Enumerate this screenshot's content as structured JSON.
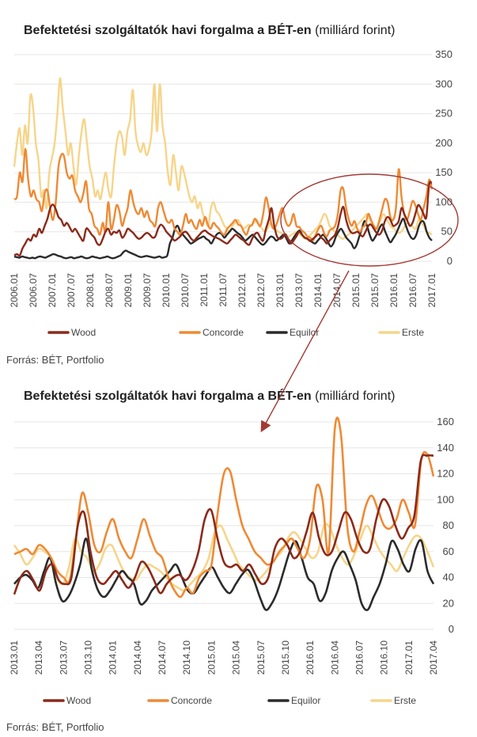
{
  "chart_data": [
    {
      "type": "line",
      "title_main": "Befektetési szolgáltatók havi forgalma a BÉT-en",
      "title_unit": "(milliárd forint)",
      "ylim": [
        0,
        350
      ],
      "yticks": [
        "0",
        "50",
        "100",
        "150",
        "200",
        "250",
        "300",
        "350"
      ],
      "x_tick_labels": [
        "2006.01",
        "2006.07",
        "2007.01",
        "2007.07",
        "2008.01",
        "2008.07",
        "2009.01",
        "2009.07",
        "2010.01",
        "2010.07",
        "2011.01",
        "2011.07",
        "2012.01",
        "2012.07",
        "2013.01",
        "2013.07",
        "2014.01",
        "2014.07",
        "2015.01",
        "2015.07",
        "2016.01",
        "2016.07",
        "2017.01"
      ],
      "x_start": "2006.01",
      "x_end": "2017.04",
      "grid": true,
      "legend_position": "bottom",
      "series": [
        {
          "name": "Wood",
          "color": "#8b2a1a",
          "values": [
            10,
            12,
            10,
            22,
            30,
            38,
            35,
            45,
            42,
            55,
            48,
            60,
            72,
            90,
            96,
            88,
            75,
            70,
            60,
            65,
            58,
            50,
            55,
            48,
            40,
            35,
            55,
            52,
            45,
            40,
            30,
            28,
            38,
            50,
            55,
            45,
            50,
            48,
            52,
            40,
            45,
            55,
            52,
            48,
            42,
            38,
            40,
            45,
            48,
            45,
            40,
            42,
            55,
            62,
            58,
            50,
            45,
            40,
            35,
            38,
            42,
            48,
            50,
            45,
            38,
            35,
            40,
            45,
            50,
            52,
            48,
            45,
            42,
            40,
            38,
            35,
            32,
            30,
            35,
            40,
            45,
            42,
            38,
            35,
            30,
            28,
            38,
            46,
            48,
            40,
            35,
            55,
            70,
            90,
            60,
            42,
            38,
            40,
            46,
            38,
            30,
            35,
            42,
            50,
            45,
            40,
            38,
            34,
            38,
            42,
            46,
            40,
            36,
            30,
            35,
            40,
            45,
            58,
            80,
            92,
            70,
            55,
            48,
            48,
            50,
            46,
            42,
            50,
            60,
            62,
            55,
            48,
            45,
            52,
            68,
            75,
            70,
            60,
            62,
            68,
            90,
            80,
            70,
            60,
            65,
            80,
            95,
            90,
            80,
            75,
            130,
            132
          ]
        },
        {
          "name": "Concorde",
          "color": "#ee8a35",
          "values": [
            105,
            110,
            150,
            135,
            190,
            140,
            110,
            120,
            105,
            100,
            85,
            115,
            120,
            90,
            70,
            100,
            160,
            180,
            178,
            150,
            140,
            145,
            120,
            110,
            100,
            115,
            135,
            90,
            80,
            60,
            55,
            45,
            65,
            50,
            100,
            55,
            70,
            95,
            85,
            60,
            75,
            90,
            120,
            100,
            85,
            80,
            90,
            75,
            85,
            70,
            65,
            60,
            90,
            100,
            85,
            70,
            65,
            70,
            55,
            50,
            45,
            60,
            80,
            65,
            70,
            60,
            55,
            70,
            60,
            75,
            62,
            55,
            65,
            60,
            55,
            48,
            45,
            55,
            60,
            65,
            70,
            62,
            60,
            50,
            45,
            58,
            62,
            72,
            65,
            60,
            80,
            108,
            90,
            62,
            55,
            65,
            80,
            90,
            70,
            60,
            65,
            80,
            60,
            58,
            52,
            48,
            42,
            40,
            35,
            45,
            55,
            60,
            48,
            42,
            52,
            55,
            60,
            80,
            120,
            122,
            90,
            70,
            60,
            68,
            55,
            50,
            58,
            62,
            80,
            70,
            60,
            55,
            70,
            88,
            105,
            100,
            75,
            70,
            90,
            156,
            110,
            80,
            70,
            85,
            102,
            95,
            80,
            70,
            90,
            110,
            138,
            122
          ]
        },
        {
          "name": "Equilor",
          "color": "#2b2b2b",
          "values": [
            8,
            7,
            6,
            8,
            7,
            6,
            5,
            6,
            5,
            7,
            8,
            7,
            6,
            8,
            10,
            12,
            11,
            9,
            8,
            6,
            5,
            6,
            7,
            5,
            6,
            7,
            8,
            6,
            5,
            6,
            8,
            7,
            6,
            5,
            6,
            7,
            8,
            6,
            5,
            6,
            8,
            10,
            15,
            18,
            16,
            14,
            12,
            10,
            8,
            7,
            8,
            9,
            8,
            7,
            6,
            7,
            8,
            6,
            7,
            10,
            30,
            40,
            55,
            60,
            50,
            45,
            40,
            35,
            30,
            32,
            35,
            38,
            40,
            42,
            38,
            35,
            30,
            38,
            45,
            48,
            46,
            40,
            45,
            50,
            55,
            52,
            48,
            45,
            40,
            35,
            38,
            42,
            45,
            40,
            35,
            30,
            28,
            32,
            38,
            42,
            40,
            35,
            38,
            42,
            45,
            38,
            30,
            35,
            42,
            48,
            52,
            45,
            40,
            38,
            35,
            32,
            30,
            35,
            40,
            45,
            40,
            32,
            25,
            30,
            42,
            50,
            55,
            48,
            40,
            35,
            30,
            22,
            28,
            42,
            55,
            68,
            60,
            45,
            35,
            40,
            48,
            58,
            62,
            50,
            40,
            32,
            38,
            45,
            55,
            65,
            72,
            60,
            48,
            40,
            38,
            45,
            60,
            68,
            65,
            50,
            40,
            35
          ]
        },
        {
          "name": "Erste",
          "color": "#f6d58a",
          "values": [
            160,
            200,
            225,
            180,
            230,
            200,
            280,
            260,
            200,
            170,
            110,
            120,
            90,
            150,
            175,
            200,
            250,
            310,
            260,
            220,
            180,
            200,
            160,
            130,
            180,
            220,
            240,
            200,
            160,
            140,
            110,
            120,
            105,
            130,
            150,
            120,
            110,
            160,
            200,
            220,
            210,
            180,
            220,
            240,
            290,
            220,
            195,
            185,
            200,
            180,
            190,
            220,
            300,
            220,
            300,
            230,
            200,
            150,
            130,
            180,
            150,
            120,
            160,
            150,
            130,
            110,
            100,
            110,
            90,
            100,
            80,
            70,
            60,
            90,
            100,
            85,
            80,
            70,
            60,
            55,
            50,
            60,
            65,
            70,
            62,
            55,
            58,
            62,
            60,
            65,
            70,
            60,
            55,
            50,
            55,
            65,
            60,
            55,
            50,
            48,
            45,
            40,
            42,
            45,
            48,
            50,
            45,
            42,
            38,
            40,
            45,
            50,
            55,
            60,
            70,
            80,
            75,
            60,
            55,
            50,
            45,
            40,
            38,
            42,
            45,
            50,
            55,
            60,
            65,
            70,
            75,
            80,
            70,
            60,
            55,
            60,
            70,
            80,
            72,
            65,
            58,
            55,
            50,
            48,
            52,
            60,
            65,
            62,
            58,
            55,
            70,
            65,
            60,
            50,
            48,
            45
          ]
        }
      ]
    },
    {
      "type": "line",
      "title_main": "Befektetési szolgáltatók havi forgalma a BÉT-en",
      "title_unit": "(milliárd forint)",
      "ylim": [
        0,
        160
      ],
      "yticks": [
        "0",
        "20",
        "40",
        "60",
        "80",
        "100",
        "120",
        "140",
        "160"
      ],
      "x_tick_labels": [
        "2013.01",
        "2013.04",
        "2013.07",
        "2013.10",
        "2014.01",
        "2014.04",
        "2014.07",
        "2014.10",
        "2015.01",
        "2015.04",
        "2015.07",
        "2015.10",
        "2016.01",
        "2016.04",
        "2016.07",
        "2016.10",
        "2017.01",
        "2017.04"
      ],
      "x_start": "2013.01",
      "x_end": "2017.04",
      "grid": true,
      "legend_position": "bottom",
      "series": [
        {
          "name": "Wood",
          "color": "#8b2a1a",
          "values": [
            27,
            40,
            45,
            38,
            30,
            45,
            50,
            38,
            35,
            40,
            80,
            90,
            60,
            40,
            35,
            40,
            45,
            38,
            32,
            40,
            52,
            48,
            38,
            28,
            35,
            40,
            42,
            38,
            45,
            60,
            85,
            92,
            70,
            52,
            48,
            50,
            45,
            50,
            42,
            35,
            40,
            62,
            70,
            65,
            55,
            60,
            75,
            90,
            70,
            58,
            60,
            75,
            90,
            85,
            70,
            60,
            62,
            85,
            100,
            95,
            80,
            70,
            78,
            88,
            130,
            134,
            134
          ]
        },
        {
          "name": "Concorde",
          "color": "#ee8a35",
          "values": [
            58,
            60,
            62,
            58,
            65,
            62,
            55,
            45,
            40,
            38,
            70,
            105,
            90,
            65,
            60,
            75,
            85,
            70,
            60,
            55,
            70,
            85,
            72,
            60,
            55,
            40,
            30,
            25,
            32,
            28,
            40,
            45,
            50,
            90,
            120,
            122,
            100,
            80,
            70,
            60,
            55,
            50,
            52,
            60,
            65,
            70,
            62,
            55,
            70,
            110,
            100,
            60,
            155,
            150,
            80,
            60,
            75,
            95,
            103,
            92,
            80,
            78,
            85,
            100,
            90,
            80,
            130,
            135,
            118
          ]
        },
        {
          "name": "Equilor",
          "color": "#2b2b2b",
          "values": [
            35,
            40,
            42,
            38,
            32,
            45,
            55,
            35,
            22,
            25,
            35,
            50,
            70,
            45,
            30,
            25,
            30,
            38,
            45,
            40,
            35,
            20,
            22,
            30,
            35,
            40,
            45,
            50,
            40,
            30,
            28,
            35,
            42,
            48,
            40,
            32,
            28,
            35,
            42,
            46,
            38,
            25,
            15,
            20,
            30,
            45,
            60,
            68,
            55,
            40,
            35,
            22,
            28,
            45,
            55,
            60,
            50,
            38,
            20,
            15,
            25,
            35,
            50,
            68,
            62,
            50,
            45,
            62,
            68,
            45,
            35
          ]
        },
        {
          "name": "Erste",
          "color": "#f6d58a",
          "values": [
            65,
            58,
            50,
            55,
            62,
            60,
            55,
            40,
            35,
            48,
            70,
            60,
            55,
            45,
            50,
            62,
            65,
            55,
            45,
            40,
            38,
            45,
            50,
            48,
            45,
            40,
            35,
            32,
            30,
            35,
            40,
            45,
            55,
            75,
            80,
            70,
            60,
            50,
            45,
            40,
            38,
            42,
            48,
            55,
            60,
            70,
            75,
            70,
            62,
            55,
            60,
            80,
            78,
            65,
            55,
            50,
            58,
            70,
            80,
            72,
            62,
            55,
            50,
            45,
            55,
            65,
            72,
            70,
            60,
            48
          ]
        }
      ]
    }
  ],
  "source_top": "Forrás: BÉT, Portfolio",
  "source_bottom": "Forrás: BÉT, Portfolio"
}
